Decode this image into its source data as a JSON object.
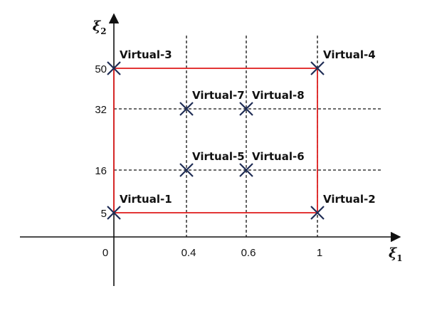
{
  "axes": {
    "x_symbol": "ξ",
    "x_subscript": "1",
    "y_symbol": "ξ",
    "y_subscript": "2",
    "x_ticks": [
      {
        "value": 0,
        "label": "0"
      },
      {
        "value": 0.4,
        "label": "0.4"
      },
      {
        "value": 0.6,
        "label": "0.6"
      },
      {
        "value": 1,
        "label": "1"
      }
    ],
    "y_ticks": [
      {
        "value": 5,
        "label": "5"
      },
      {
        "value": 16,
        "label": "16"
      },
      {
        "value": 32,
        "label": "32"
      },
      {
        "value": 50,
        "label": "50"
      }
    ],
    "dashed_x": [
      0.4,
      0.6,
      1
    ],
    "dashed_y": [
      16,
      32
    ]
  },
  "region": {
    "x_min": 0,
    "x_max": 1,
    "y_min": 5,
    "y_max": 50
  },
  "points": [
    {
      "label": "Virtual-1",
      "x": 0,
      "y": 5
    },
    {
      "label": "Virtual-2",
      "x": 1,
      "y": 5
    },
    {
      "label": "Virtual-3",
      "x": 0,
      "y": 50
    },
    {
      "label": "Virtual-4",
      "x": 1,
      "y": 50
    },
    {
      "label": "Virtual-5",
      "x": 0.4,
      "y": 16
    },
    {
      "label": "Virtual-6",
      "x": 0.6,
      "y": 16
    },
    {
      "label": "Virtual-7",
      "x": 0.4,
      "y": 32
    },
    {
      "label": "Virtual-8",
      "x": 0.6,
      "y": 32
    }
  ],
  "colors": {
    "region": "#e02020",
    "marker": "#1f2d55",
    "axis": "#111111",
    "dashed": "#111111"
  }
}
